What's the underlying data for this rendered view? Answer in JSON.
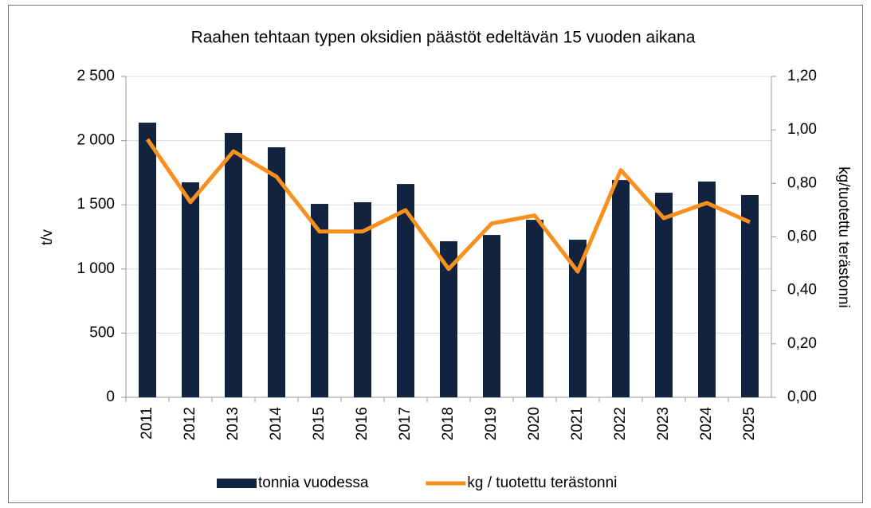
{
  "chart_data": {
    "type": "bar_line",
    "title": "Raahen tehtaan typen oksidien päästöt edeltävän 15 vuoden aikana",
    "y_label": "t/v",
    "y2_label": "kg/tuotettu terästonni",
    "categories": [
      "2011",
      "2012",
      "2013",
      "2014",
      "2015",
      "2016",
      "2017",
      "2018",
      "2019",
      "2020",
      "2021",
      "2022",
      "2023",
      "2024",
      "2025"
    ],
    "series": [
      {
        "name": "tonnia vuodessa",
        "type": "bar",
        "color": "#12233f",
        "values": [
          2140,
          1675,
          2060,
          1948,
          1507,
          1520,
          1662,
          1216,
          1265,
          1383,
          1228,
          1693,
          1594,
          1681,
          1576
        ]
      },
      {
        "name": "kg / tuotettu terästonni",
        "type": "line",
        "axis": "y2",
        "color": "#f7901e",
        "values": [
          0.965,
          0.73,
          0.92,
          0.825,
          0.62,
          0.62,
          0.7,
          0.48,
          0.65,
          0.68,
          0.47,
          0.85,
          0.67,
          0.727,
          0.655
        ]
      }
    ],
    "ylim": [
      0,
      2500
    ],
    "yticks": [
      0,
      500,
      {
        "value": 1000,
        "label": "1 000"
      },
      {
        "value": 1500,
        "label": "1 500"
      },
      {
        "value": 2000,
        "label": "2 000"
      },
      {
        "value": 2500,
        "label": "2 500"
      }
    ],
    "y2lim": [
      0,
      1.2
    ],
    "y2ticks": [
      {
        "value": 0,
        "label": "0,00"
      },
      {
        "value": 0.2,
        "label": "0,20"
      },
      {
        "value": 0.4,
        "label": "0,40"
      },
      {
        "value": 0.6,
        "label": "0,60"
      },
      {
        "value": 0.8,
        "label": "0,80"
      },
      {
        "value": 1.0,
        "label": "1,00"
      },
      {
        "value": 1.2,
        "label": "1,20"
      }
    ],
    "grid": true,
    "legend": "bottom"
  }
}
